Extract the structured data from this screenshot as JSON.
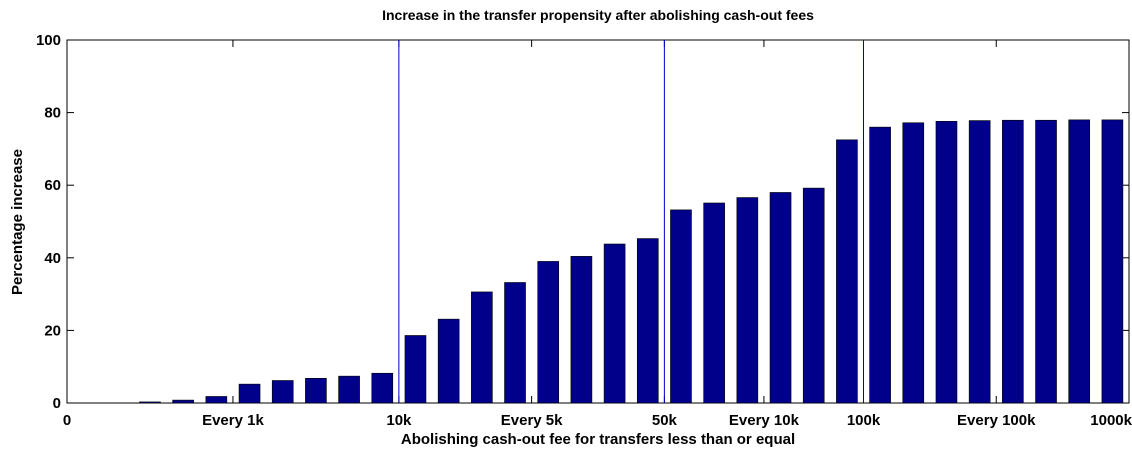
{
  "chart_data": {
    "type": "bar",
    "title": "Increase in the transfer propensity after abolishing cash-out fees",
    "xlabel": "Abolishing cash-out fee for transfers less than or equal",
    "ylabel": "Percentage increase",
    "ylim": [
      0,
      100
    ],
    "yticks": [
      0,
      20,
      40,
      60,
      80,
      100
    ],
    "x_tick_labels": [
      "0",
      "Every 1k",
      "10k",
      "Every 5k",
      "50k",
      "Every 10k",
      "100k",
      "Every 100k",
      "1000k"
    ],
    "grid": false,
    "bar_color": "#00008b",
    "separator_color": "#0000cc",
    "values": [
      0,
      0,
      0.3,
      0.8,
      1.8,
      5.2,
      6.2,
      6.8,
      7.4,
      8.2,
      18.6,
      23.1,
      30.6,
      33.2,
      39.0,
      40.4,
      43.8,
      45.3,
      53.2,
      55.1,
      56.6,
      58.0,
      59.2,
      72.5,
      76.0,
      77.2,
      77.6,
      77.8,
      77.9,
      77.9,
      78.0,
      78.0
    ]
  }
}
